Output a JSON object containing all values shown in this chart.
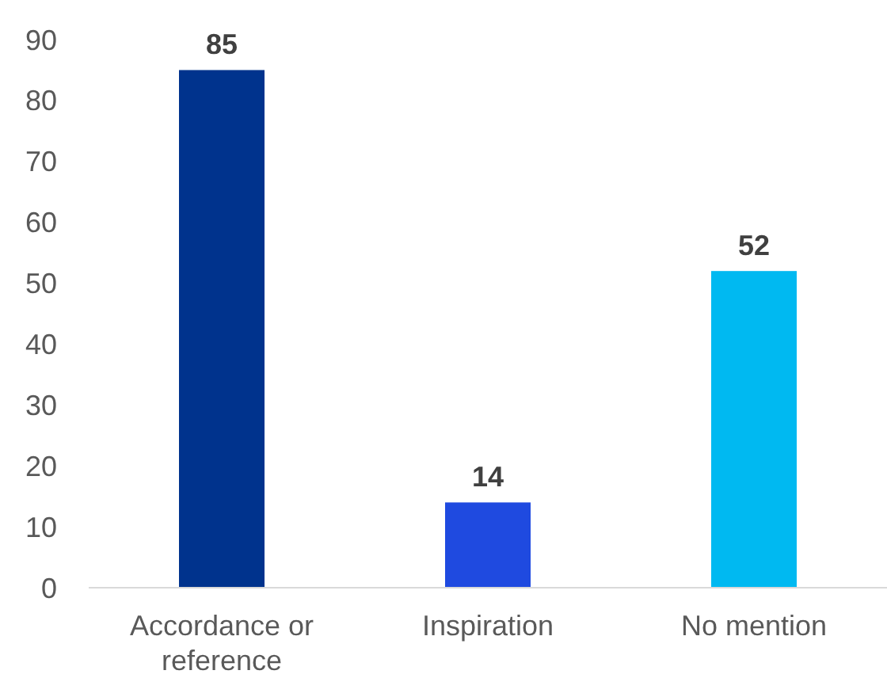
{
  "chart_data": {
    "type": "bar",
    "categories": [
      "Accordance or reference",
      "Inspiration",
      "No mention"
    ],
    "values": [
      85,
      14,
      52
    ],
    "colors": [
      "#00338d",
      "#1f4ae0",
      "#00b9f1"
    ],
    "ylim": [
      0,
      90
    ],
    "yticks": [
      0,
      10,
      20,
      30,
      40,
      50,
      60,
      70,
      80,
      90
    ],
    "grid": false,
    "data_labels": true
  }
}
